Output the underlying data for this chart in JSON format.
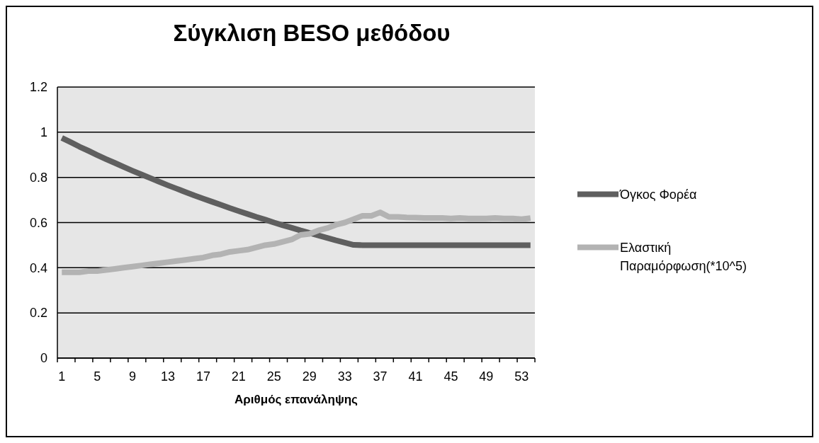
{
  "chart_data": {
    "type": "line",
    "title": "Σύγκλιση BESO μεθόδου",
    "xlabel": "Αριθμός επανάληψης",
    "categories": [
      "1",
      null,
      null,
      null,
      "5",
      null,
      null,
      null,
      "9",
      null,
      null,
      null,
      "13",
      null,
      null,
      null,
      "17",
      null,
      null,
      null,
      "21",
      null,
      null,
      null,
      "25",
      null,
      null,
      null,
      "29",
      null,
      null,
      null,
      "33",
      null,
      null,
      null,
      "37",
      null,
      null,
      null,
      "41",
      null,
      null,
      null,
      "45",
      null,
      null,
      null,
      "49",
      null,
      null,
      null,
      "53",
      null
    ],
    "series": [
      {
        "name": "Όγκος Φορέα",
        "color": "#5f5f5f",
        "values": [
          0.975,
          0.956,
          0.936,
          0.918,
          0.899,
          0.881,
          0.864,
          0.846,
          0.829,
          0.813,
          0.797,
          0.781,
          0.765,
          0.75,
          0.735,
          0.72,
          0.706,
          0.692,
          0.678,
          0.664,
          0.651,
          0.638,
          0.625,
          0.613,
          0.6,
          0.588,
          0.577,
          0.565,
          0.554,
          0.543,
          0.532,
          0.521,
          0.511,
          0.501,
          0.5,
          0.5,
          0.5,
          0.5,
          0.5,
          0.5,
          0.5,
          0.5,
          0.5,
          0.5,
          0.5,
          0.5,
          0.5,
          0.5,
          0.5,
          0.5,
          0.5,
          0.5,
          0.5,
          0.5
        ]
      },
      {
        "name": "Ελαστική Παραμόρφωση(*10^5)",
        "color": "#b3b3b3",
        "values": [
          0.38,
          0.38,
          0.38,
          0.385,
          0.385,
          0.39,
          0.395,
          0.4,
          0.405,
          0.41,
          0.415,
          0.42,
          0.425,
          0.43,
          0.435,
          0.44,
          0.445,
          0.455,
          0.46,
          0.47,
          0.475,
          0.48,
          0.49,
          0.5,
          0.505,
          0.515,
          0.525,
          0.545,
          0.55,
          0.565,
          0.575,
          0.59,
          0.6,
          0.615,
          0.63,
          0.63,
          0.645,
          0.625,
          0.625,
          0.623,
          0.622,
          0.62,
          0.62,
          0.62,
          0.618,
          0.62,
          0.618,
          0.618,
          0.618,
          0.62,
          0.618,
          0.618,
          0.615,
          0.62
        ]
      }
    ],
    "ylim": [
      0,
      1.2
    ],
    "yticks": [
      0,
      0.2,
      0.4,
      0.6,
      0.8,
      1,
      1.2
    ],
    "grid": "y",
    "legend": "right",
    "marker": "none",
    "line_style": "solid"
  }
}
